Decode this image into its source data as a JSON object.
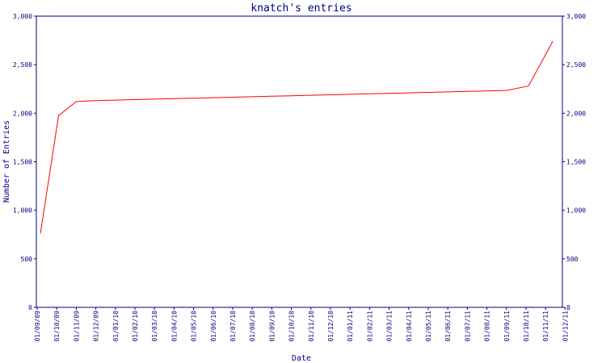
{
  "chart_data": {
    "type": "line",
    "title": "knatch's entries",
    "xlabel": "Date",
    "ylabel": "Number of Entries",
    "ylim": [
      0,
      3000
    ],
    "yticks": [
      0,
      500,
      1000,
      1500,
      2000,
      2500,
      3000
    ],
    "ytick_labels": [
      "0",
      "500",
      "1,000",
      "1,500",
      "2,000",
      "2,500",
      "3,000"
    ],
    "x_tick_labels": [
      "01/09/09",
      "01/10/09",
      "01/11/09",
      "01/12/09",
      "01/01/10",
      "01/02/10",
      "01/03/10",
      "01/04/10",
      "01/05/10",
      "01/06/10",
      "01/07/10",
      "01/08/10",
      "01/09/10",
      "01/10/10",
      "01/11/10",
      "01/12/10",
      "01/01/11",
      "01/02/11",
      "01/03/11",
      "01/04/11",
      "01/05/11",
      "01/06/11",
      "01/07/11",
      "01/08/11",
      "01/09/11",
      "01/10/11",
      "01/11/11",
      "01/12/11"
    ],
    "grid": false,
    "series_color": "#ff0000",
    "axis_color": "#000080",
    "series": [
      {
        "x": [
          "2009-09-06",
          "2009-10-04",
          "2009-11-01",
          "2009-11-15",
          "2009-12-01",
          "2010-01-01",
          "2010-02-01",
          "2010-03-01",
          "2010-04-01",
          "2010-05-01",
          "2010-06-01",
          "2010-07-01",
          "2010-08-01",
          "2010-09-01",
          "2010-10-01",
          "2010-11-01",
          "2010-12-01",
          "2011-01-01",
          "2011-02-01",
          "2011-03-01",
          "2011-04-01",
          "2011-05-01",
          "2011-06-01",
          "2011-07-01",
          "2011-08-01",
          "2011-09-01",
          "2011-10-05",
          "2011-11-12"
        ],
        "values": [
          760,
          1975,
          2120,
          2125,
          2130,
          2135,
          2140,
          2145,
          2150,
          2155,
          2160,
          2165,
          2170,
          2175,
          2180,
          2185,
          2190,
          2195,
          2200,
          2205,
          2210,
          2215,
          2220,
          2225,
          2230,
          2235,
          2280,
          2740
        ]
      }
    ]
  }
}
